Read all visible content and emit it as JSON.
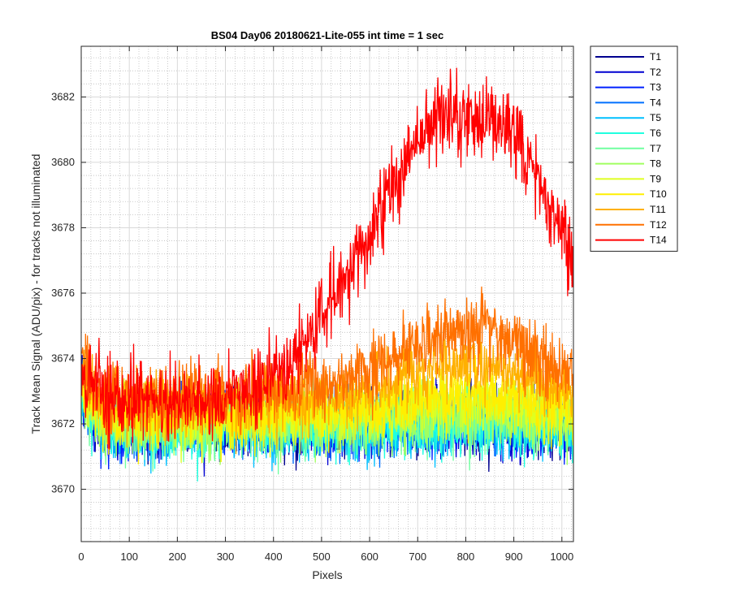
{
  "chart_data": {
    "type": "line",
    "title": "BS04 Day06 20180621-Lite-055 int time = 1 sec",
    "xlabel": "Pixels",
    "ylabel": "Track Mean Signal (ADU/pix) - for tracks not illuminated",
    "xlim": [
      0,
      1024
    ],
    "ylim": [
      3668.4,
      3683.55
    ],
    "xticks": [
      0,
      100,
      200,
      300,
      400,
      500,
      600,
      700,
      800,
      900,
      1000
    ],
    "yticks": [
      3670,
      3672,
      3674,
      3676,
      3678,
      3680,
      3682
    ],
    "grid": true,
    "minor_grid": true,
    "legend_position": "outside-top-right",
    "series": [
      {
        "name": "T1",
        "color": "#00008f",
        "baseline": 3672.0,
        "noise": 0.9,
        "bump": 0.0
      },
      {
        "name": "T2",
        "color": "#0000d0",
        "baseline": 3672.0,
        "noise": 0.9,
        "bump": 0.0
      },
      {
        "name": "T3",
        "color": "#0020ff",
        "baseline": 3672.0,
        "noise": 0.9,
        "bump": 0.0
      },
      {
        "name": "T4",
        "color": "#0070ff",
        "baseline": 3672.0,
        "noise": 0.9,
        "bump": 0.0
      },
      {
        "name": "T5",
        "color": "#00c0ff",
        "baseline": 3671.9,
        "noise": 0.9,
        "bump": 0.0
      },
      {
        "name": "T6",
        "color": "#20ffdf",
        "baseline": 3671.9,
        "noise": 0.9,
        "bump": 0.0
      },
      {
        "name": "T7",
        "color": "#70ffa0",
        "baseline": 3672.0,
        "noise": 0.9,
        "bump": 0.2
      },
      {
        "name": "T8",
        "color": "#a0ff60",
        "baseline": 3672.0,
        "noise": 0.9,
        "bump": 0.3
      },
      {
        "name": "T9",
        "color": "#dfff20",
        "baseline": 3672.2,
        "noise": 0.9,
        "bump": 0.4
      },
      {
        "name": "T10",
        "color": "#ffef00",
        "baseline": 3672.3,
        "noise": 0.9,
        "bump": 0.6
      },
      {
        "name": "T11",
        "color": "#ffb000",
        "baseline": 3672.6,
        "noise": 0.9,
        "bump": 1.2
      },
      {
        "name": "T12",
        "color": "#ff7000",
        "baseline": 3672.9,
        "noise": 0.95,
        "bump": 2.0
      },
      {
        "name": "T14",
        "color": "#ff0000",
        "baseline": 3673.0,
        "noise": 1.0,
        "bump": 8.0
      }
    ]
  }
}
